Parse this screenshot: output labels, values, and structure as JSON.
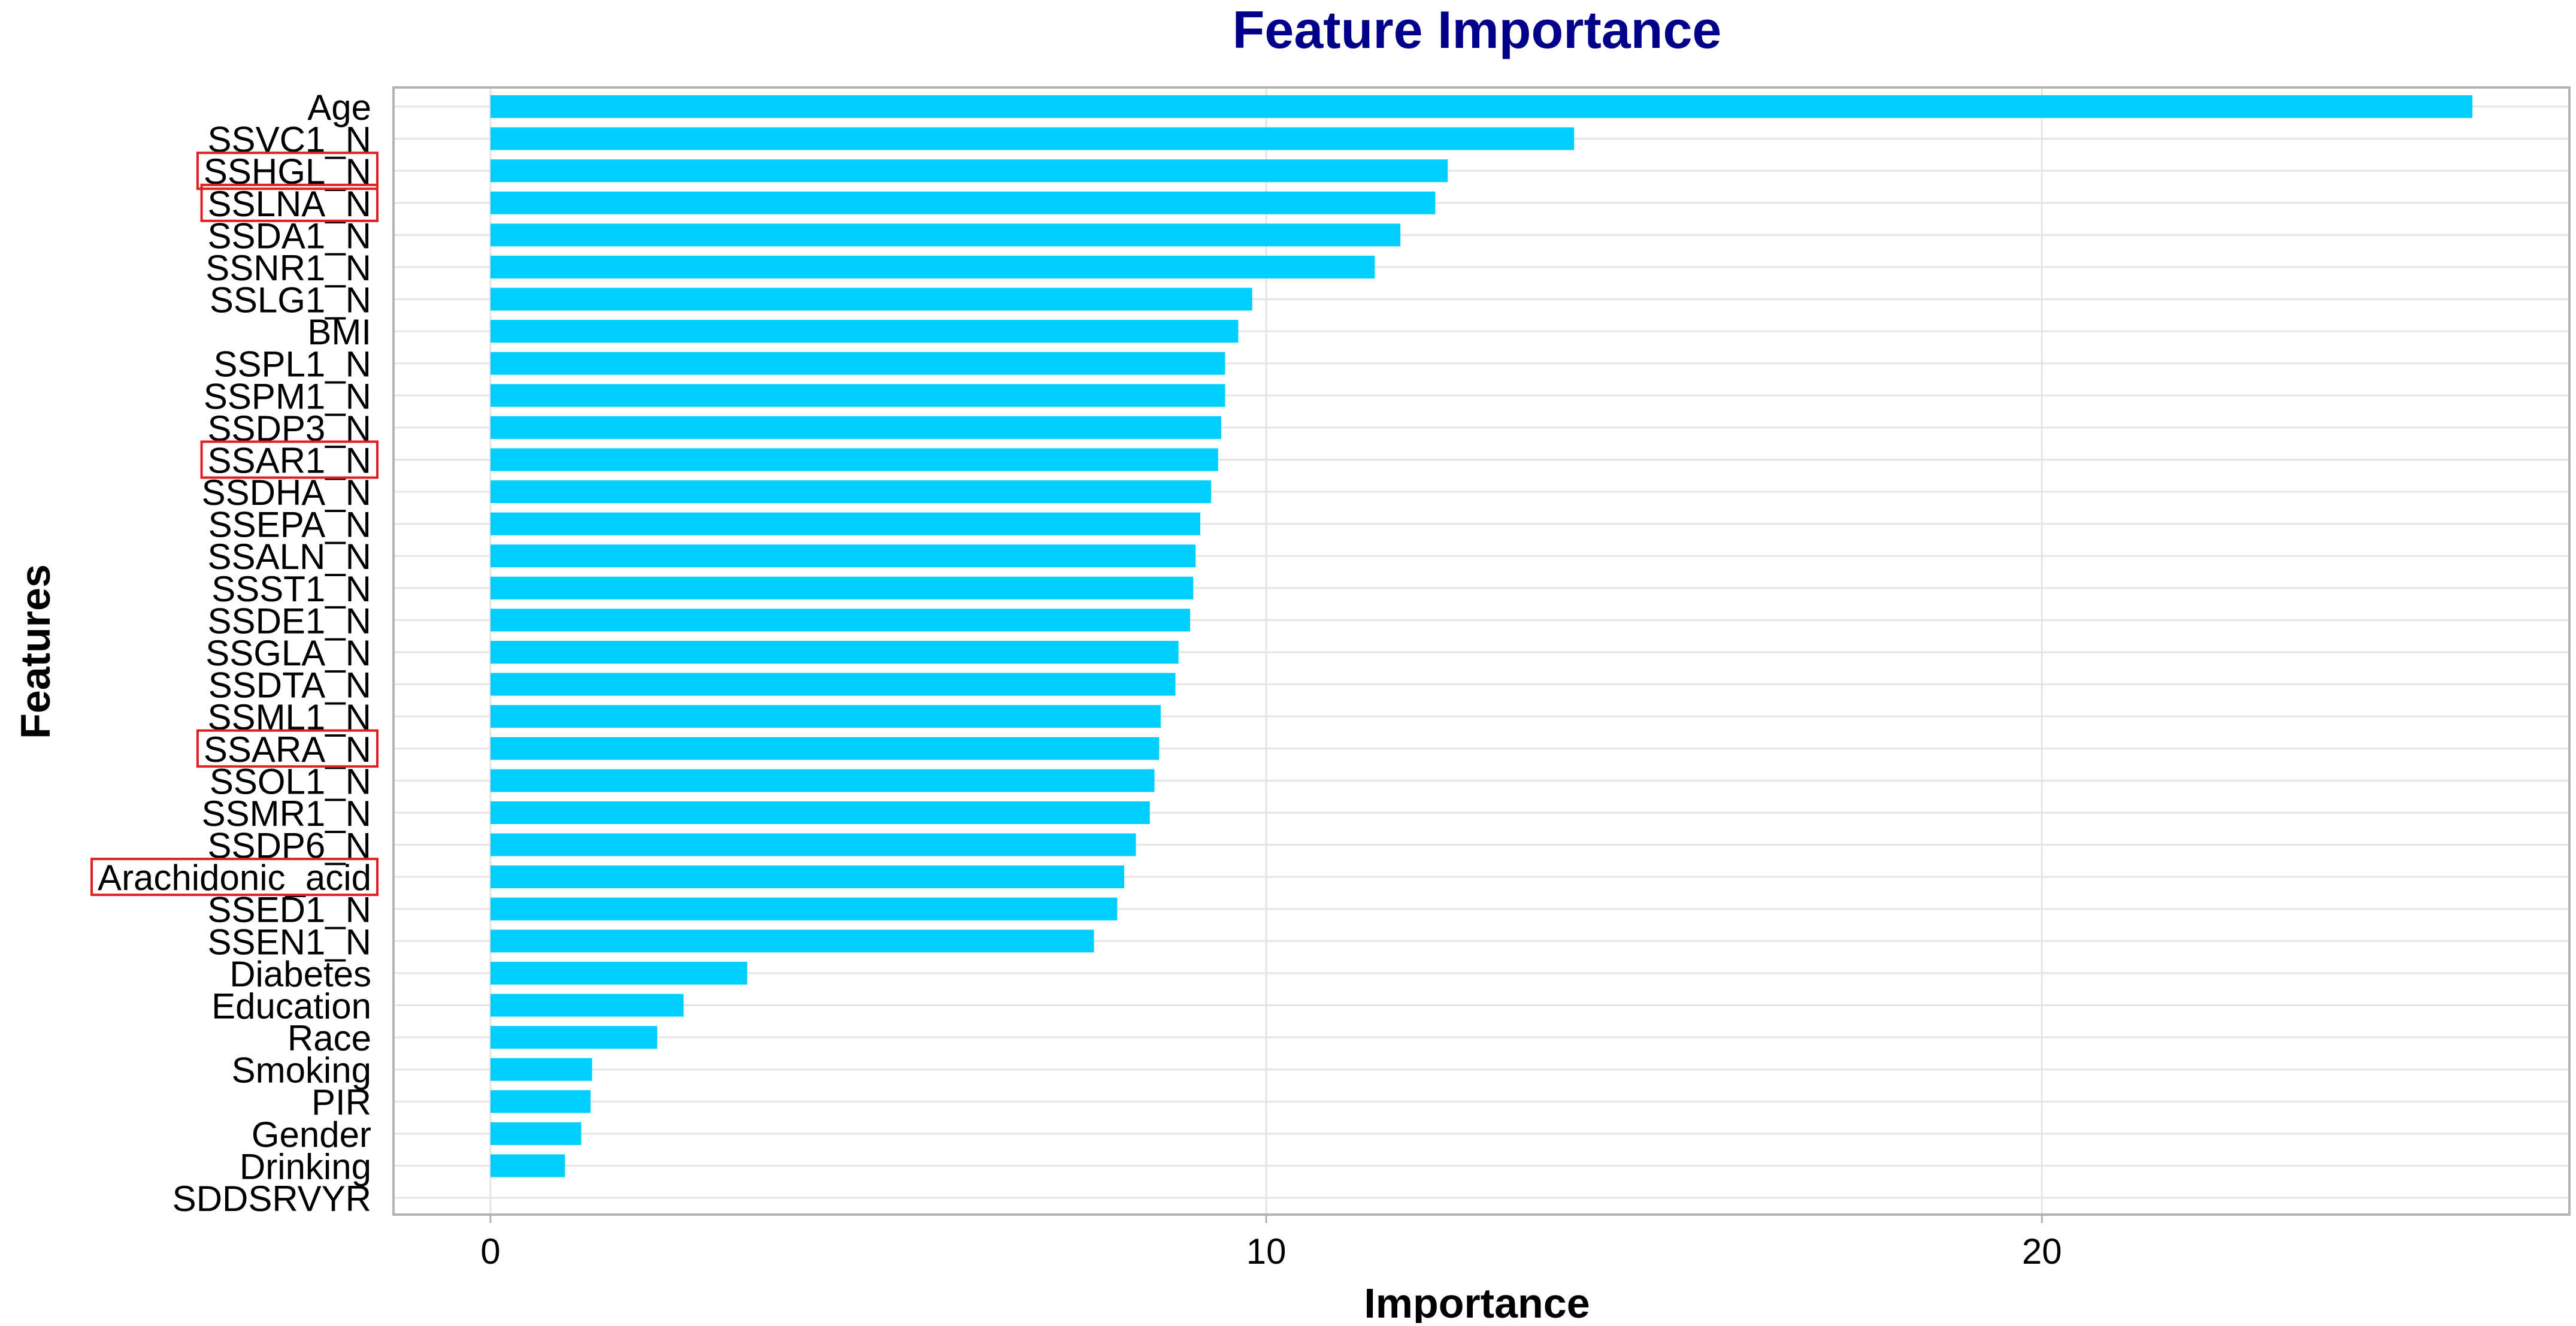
{
  "chart_data": {
    "type": "bar",
    "orientation": "horizontal",
    "title": "Feature Importance",
    "xlabel": "Importance",
    "ylabel": "Features",
    "xlim": [
      -1.25,
      26.8
    ],
    "xticks": [
      0,
      10,
      20
    ],
    "grid": true,
    "categories": [
      "Age",
      "SSVC1_N",
      "SSHGL_N",
      "SSLNA_N",
      "SSDA1_N",
      "SSNR1_N",
      "SSLG1_N",
      "BMI",
      "SSPL1_N",
      "SSPM1_N",
      "SSDP3_N",
      "SSAR1_N",
      "SSDHA_N",
      "SSEPA_N",
      "SSALN_N",
      "SSST1_N",
      "SSDE1_N",
      "SSGLA_N",
      "SSDTA_N",
      "SSML1_N",
      "SSARA_N",
      "SSOL1_N",
      "SSMR1_N",
      "SSDP6_N",
      "Arachidonic_acid",
      "SSED1_N",
      "SSEN1_N",
      "Diabetes",
      "Education",
      "Race",
      "Smoking",
      "PIR",
      "Gender",
      "Drinking",
      "SDDSRVYR"
    ],
    "values": [
      25.55,
      13.97,
      12.34,
      12.18,
      11.73,
      11.4,
      9.82,
      9.64,
      9.47,
      9.47,
      9.42,
      9.38,
      9.29,
      9.15,
      9.09,
      9.06,
      9.02,
      8.87,
      8.83,
      8.64,
      8.62,
      8.56,
      8.5,
      8.32,
      8.17,
      8.08,
      7.78,
      3.31,
      2.49,
      2.15,
      1.31,
      1.29,
      1.17,
      0.96,
      0
    ],
    "highlighted": [
      "SSHGL_N",
      "SSLNA_N",
      "SSAR1_N",
      "SSARA_N",
      "Arachidonic_acid"
    ],
    "colors": {
      "bar": "#00CFFF",
      "title": "#00008B",
      "highlight_box": "#E02020",
      "grid": "#E5E5E5",
      "axis_line": "#B3B3B3"
    }
  }
}
